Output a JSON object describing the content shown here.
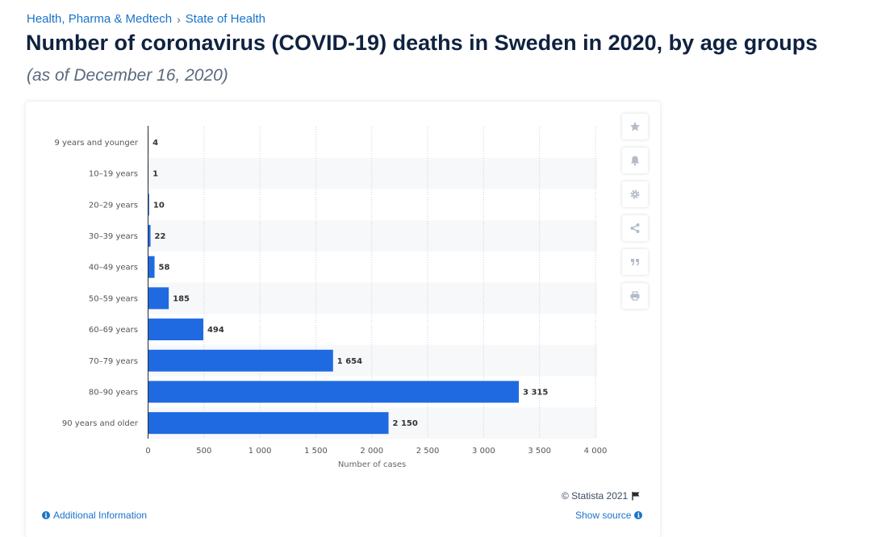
{
  "breadcrumb": {
    "items": [
      "Health, Pharma & Medtech",
      "State of Health"
    ],
    "separator": "›"
  },
  "header": {
    "title": "Number of coronavirus (COVID-19) deaths in Sweden in 2020, by age groups",
    "subtitle": "(as of December 16, 2020)"
  },
  "chart_data": {
    "type": "bar",
    "orientation": "horizontal",
    "categories": [
      "9 years and younger",
      "10-19 years",
      "20-29 years",
      "30-39 years",
      "40-49 years",
      "50-59 years",
      "60-69 years",
      "70-79 years",
      "80-90 years",
      "90 years and older"
    ],
    "values": [
      4,
      1,
      10,
      22,
      58,
      185,
      494,
      1654,
      3315,
      2150
    ],
    "value_labels": [
      "4",
      "1",
      "10",
      "22",
      "58",
      "185",
      "494",
      "1 654",
      "3 315",
      "2 150"
    ],
    "xlabel": "Number of cases",
    "ylabel": "",
    "xlim": [
      0,
      4000
    ],
    "x_ticks": [
      0,
      500,
      1000,
      1500,
      2000,
      2500,
      3000,
      3500,
      4000
    ],
    "x_tick_labels": [
      "0",
      "500",
      "1 000",
      "1 500",
      "2 000",
      "2 500",
      "3 000",
      "3 500",
      "4 000"
    ],
    "grid": true,
    "bar_color": "#1f6ae1"
  },
  "toolbar": {
    "icons": [
      "star-icon",
      "bell-icon",
      "gear-icon",
      "share-icon",
      "quote-icon",
      "print-icon"
    ]
  },
  "footer": {
    "copyright": "© Statista 2021",
    "additional_info": "Additional Information",
    "show_source": "Show source"
  },
  "colors": {
    "accent": "#1a73c9",
    "bar": "#1f6ae1",
    "title": "#0f2240"
  }
}
